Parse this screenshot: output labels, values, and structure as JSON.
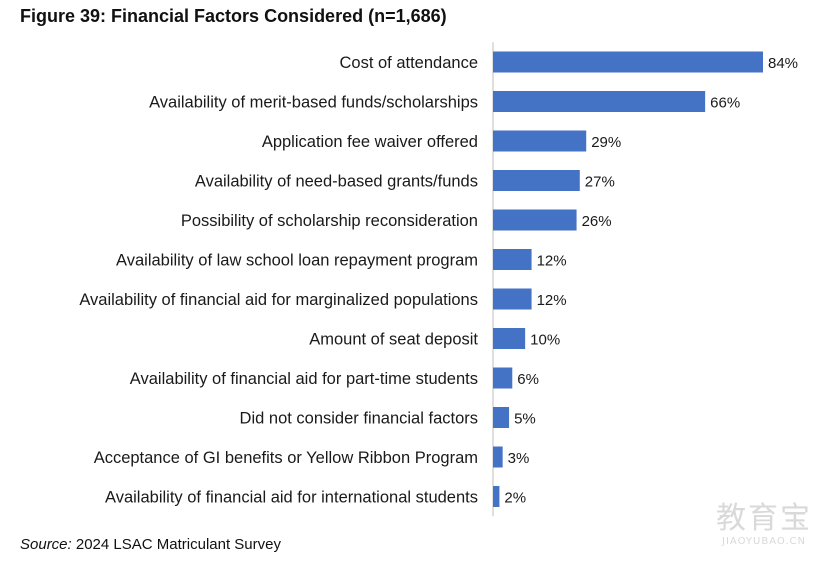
{
  "figure": {
    "title": "Figure 39: Financial Factors Considered (n=1,686)",
    "source_label": "Source:",
    "source_text": "2024 LSAC Matriculant Survey"
  },
  "watermark": {
    "main": "教育宝",
    "sub": "JIAOYUBAO.CN"
  },
  "colors": {
    "bar": "#4472C4",
    "axis": "#BFBFBF",
    "text": "#1a1a1a"
  },
  "chart_data": {
    "type": "bar",
    "orientation": "horizontal",
    "categories": [
      "Cost of attendance",
      "Availability of merit-based funds/scholarships",
      "Application fee waiver offered",
      "Availability of need-based grants/funds",
      "Possibility of scholarship reconsideration",
      "Availability of law school loan repayment program",
      "Availability of financial aid for marginalized populations",
      "Amount of seat deposit",
      "Availability of financial aid for part-time students",
      "Did not consider financial factors",
      "Acceptance of GI benefits or Yellow Ribbon Program",
      "Availability of financial aid for international students"
    ],
    "values": [
      84,
      66,
      29,
      27,
      26,
      12,
      12,
      10,
      6,
      5,
      3,
      2
    ],
    "value_suffix": "%",
    "xlim": [
      0,
      84
    ],
    "grid": false,
    "legend": "none"
  }
}
